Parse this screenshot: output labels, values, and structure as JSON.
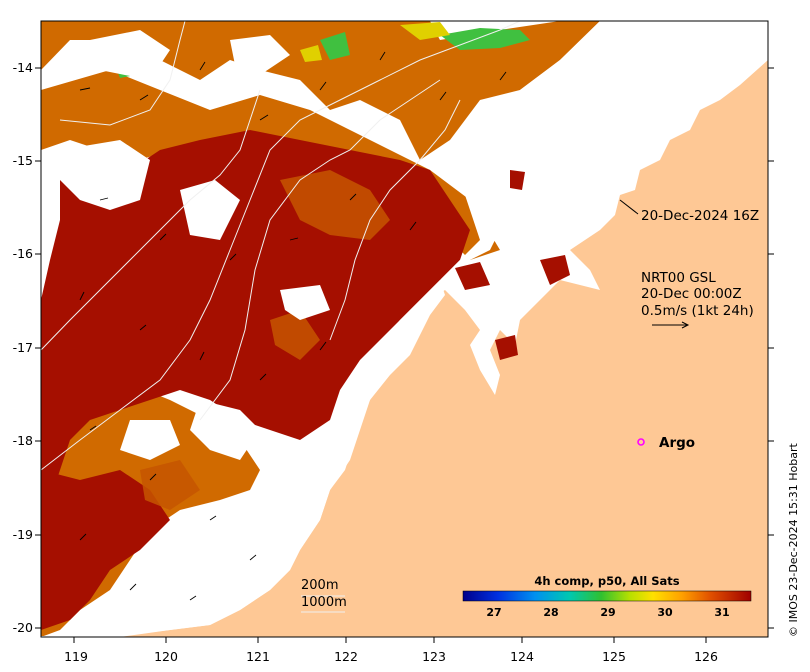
{
  "map": {
    "x_ticks": [
      "119",
      "120",
      "121",
      "122",
      "123",
      "124",
      "125",
      "126"
    ],
    "y_ticks": [
      "-14",
      "-15",
      "-16",
      "-17",
      "-18",
      "-19",
      "-20"
    ]
  },
  "annotations": {
    "timestamp": "20-Dec-2024 16Z",
    "current_product": "NRT00 GSL",
    "current_time": "20-Dec 00:00Z",
    "vector_scale": "0.5m/s (1kt 24h)"
  },
  "argo": {
    "label": "Argo",
    "color": "#ff00ff"
  },
  "isobaths": {
    "shallow": "200m",
    "deep": "1000m"
  },
  "colorbar": {
    "title": "4h comp, p50, All Sats",
    "tick_labels": [
      "27",
      "28",
      "29",
      "30",
      "31"
    ]
  },
  "credit": "© IMOS 23-Dec-2024 15:31 Hobart",
  "colors": {
    "land": "#fec895",
    "sst_warmest": "#a50f00",
    "sst_orange": "#d87000",
    "sst_green": "#40c040"
  }
}
